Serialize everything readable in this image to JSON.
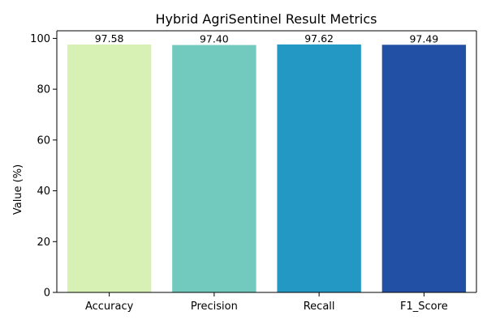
{
  "chart_data": {
    "type": "bar",
    "title": "Hybrid AgriSentinel Result Metrics",
    "xlabel": "",
    "ylabel": "Value (%)",
    "ylim": [
      0,
      103
    ],
    "yticks": [
      0,
      20,
      40,
      60,
      80,
      100
    ],
    "categories": [
      "Accuracy",
      "Precision",
      "Recall",
      "F1_Score"
    ],
    "values": [
      97.58,
      97.4,
      97.62,
      97.49
    ],
    "value_labels": [
      "97.58",
      "97.40",
      "97.62",
      "97.49"
    ],
    "colors": [
      "#d7f0b3",
      "#72c9bd",
      "#2498c5",
      "#2250a4"
    ],
    "grid": false,
    "legend": "none"
  }
}
